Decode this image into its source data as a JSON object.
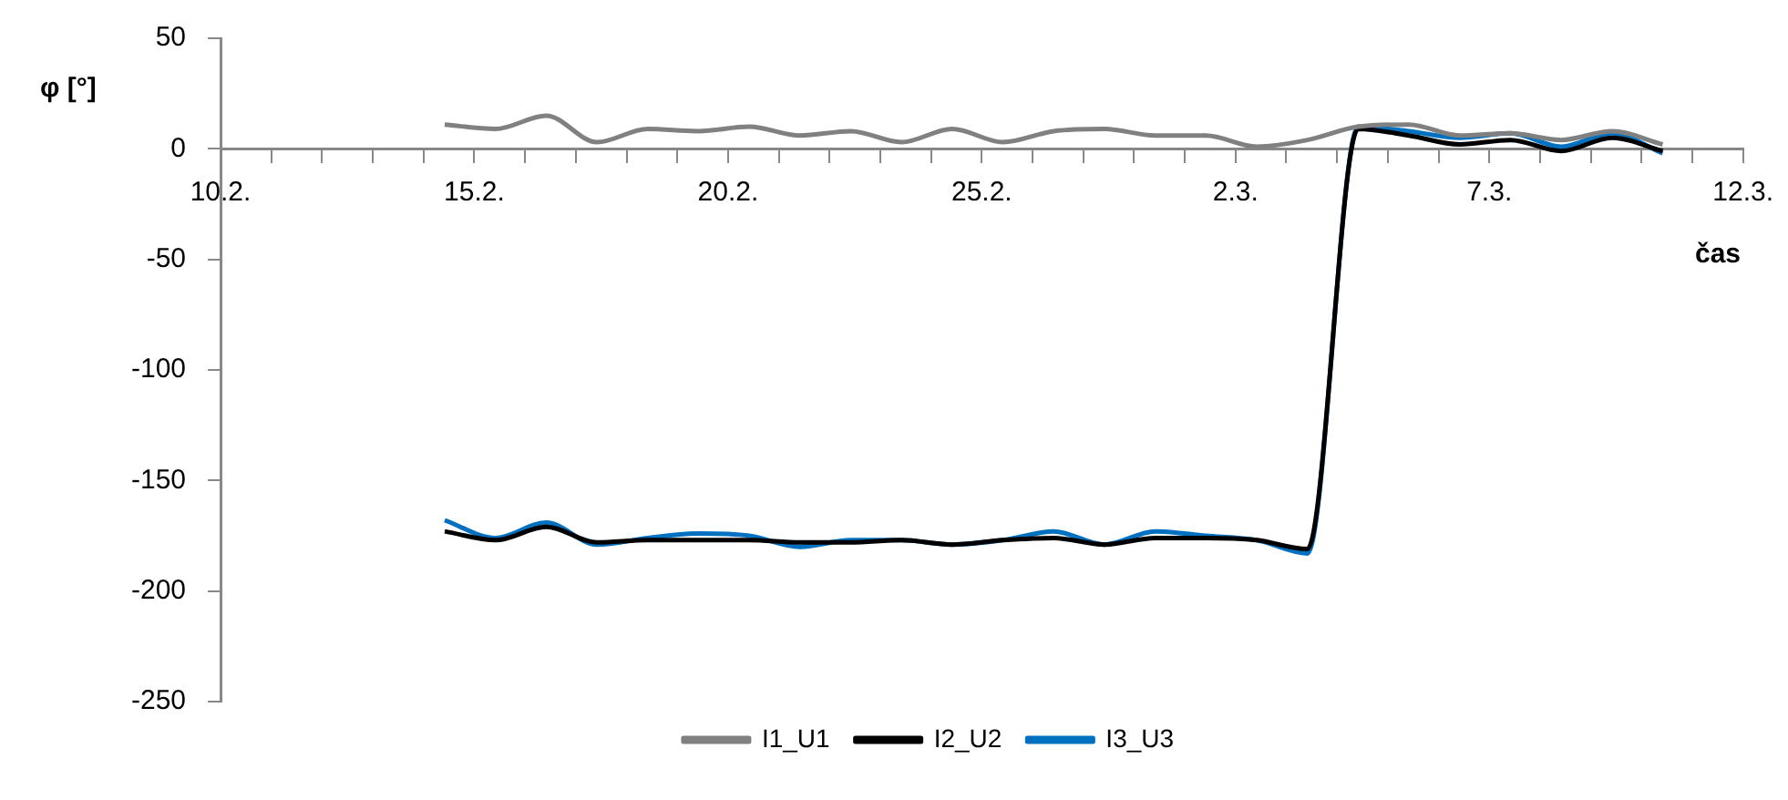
{
  "chart_data": {
    "type": "line",
    "ylabel": "φ [°]",
    "xlabel": "čas",
    "x": [
      "--02-14T10:00",
      "--02-15T10:00",
      "--02-16T10:00",
      "--02-17T10:00",
      "--02-18T10:00",
      "--02-19T10:00",
      "--02-20T10:00",
      "--02-21T10:00",
      "--02-22T10:00",
      "--02-23T10:00",
      "--02-24T10:00",
      "--02-25T10:00",
      "--02-26T10:00",
      "--02-27T10:00",
      "--02-28T10:00",
      "--03-01T10:00",
      "--03-02T10:00",
      "--03-03T10:00",
      "--03-04T10:00",
      "--03-05T10:00",
      "--03-06T10:00",
      "--03-07T10:00",
      "--03-08T10:00",
      "--03-09T10:00",
      "--03-10T10:00"
    ],
    "series": [
      {
        "name": "I1_U1",
        "color": "#808080",
        "values": [
          11,
          9,
          15,
          3,
          9,
          8,
          10,
          6,
          8,
          3,
          9,
          3,
          8,
          9,
          6,
          6,
          1,
          4,
          10,
          11,
          6,
          7,
          4,
          8,
          2
        ]
      },
      {
        "name": "I2_U2",
        "color": "#000000",
        "values": [
          -173,
          -177,
          -171,
          -178,
          -177,
          -177,
          -177,
          -178,
          -178,
          -177,
          -179,
          -177,
          -176,
          -179,
          -176,
          -176,
          -177,
          -181,
          9,
          6,
          2,
          4,
          -1,
          5,
          -1
        ]
      },
      {
        "name": "I3_U3",
        "color": "#0070c0",
        "values": [
          -168,
          -176,
          -169,
          -179,
          -176,
          -174,
          -175,
          -180,
          -177,
          -177,
          -179,
          -177,
          -173,
          -179,
          -173,
          -175,
          -177,
          -183,
          10,
          8,
          5,
          7,
          1,
          7,
          -2
        ]
      }
    ],
    "xlim": [
      "--02-10",
      "--03-12"
    ],
    "xticks": [
      {
        "value": "--02-10",
        "label": "10.2."
      },
      {
        "value": "--02-11",
        "label": null
      },
      {
        "value": "--02-12",
        "label": null
      },
      {
        "value": "--02-13",
        "label": null
      },
      {
        "value": "--02-14",
        "label": null
      },
      {
        "value": "--02-15",
        "label": "15.2."
      },
      {
        "value": "--02-16",
        "label": null
      },
      {
        "value": "--02-17",
        "label": null
      },
      {
        "value": "--02-18",
        "label": null
      },
      {
        "value": "--02-19",
        "label": null
      },
      {
        "value": "--02-20",
        "label": "20.2."
      },
      {
        "value": "--02-21",
        "label": null
      },
      {
        "value": "--02-22",
        "label": null
      },
      {
        "value": "--02-23",
        "label": null
      },
      {
        "value": "--02-24",
        "label": null
      },
      {
        "value": "--02-25",
        "label": "25.2."
      },
      {
        "value": "--02-26",
        "label": null
      },
      {
        "value": "--02-27",
        "label": null
      },
      {
        "value": "--02-28",
        "label": null
      },
      {
        "value": "--03-01",
        "label": null
      },
      {
        "value": "--03-02",
        "label": "2.3."
      },
      {
        "value": "--03-03",
        "label": null
      },
      {
        "value": "--03-04",
        "label": null
      },
      {
        "value": "--03-05",
        "label": null
      },
      {
        "value": "--03-06",
        "label": null
      },
      {
        "value": "--03-07",
        "label": "7.3."
      },
      {
        "value": "--03-08",
        "label": null
      },
      {
        "value": "--03-09",
        "label": null
      },
      {
        "value": "--03-10",
        "label": null
      },
      {
        "value": "--03-11",
        "label": null
      },
      {
        "value": "--03-12",
        "label": "12.3."
      }
    ],
    "ylim": [
      -250,
      50
    ],
    "yticks": [
      -250,
      -200,
      -150,
      -100,
      -50,
      0,
      50
    ],
    "grid": false,
    "legend": "bottom",
    "marker": "none",
    "line_style": "solid"
  }
}
